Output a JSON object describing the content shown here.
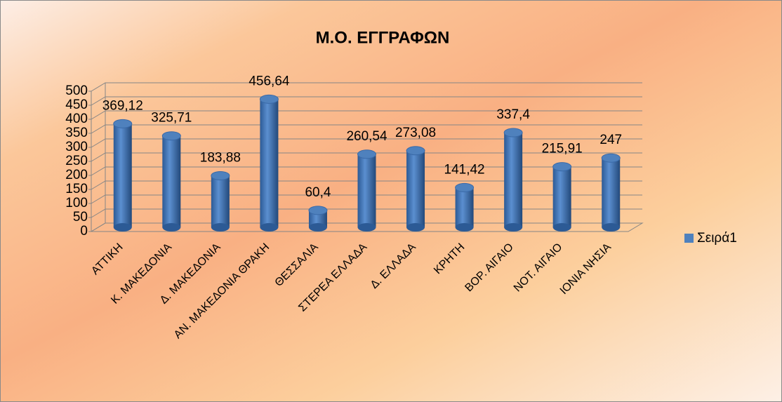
{
  "chart_data": {
    "type": "bar3d",
    "title": "Μ.Ο. ΕΓΓΡΑΦΩΝ",
    "categories": [
      "ΑΤΤΙΚΗ",
      "Κ. ΜΑΚΕΔΟΝΙΑ",
      "Δ. ΜΑΚΕΔΟΝΙΑ",
      "ΑΝ. ΜΑΚΕΔΟΝΙΑ ΘΡΑΚΗ",
      "ΘΕΣΣΑΛΙΑ",
      "ΣΤΕΡΕΑ ΕΛΛΑΔΑ",
      "Δ. ΕΛΛΑΔΑ",
      "ΚΡΗΤΗ",
      "ΒΟΡ. ΑΙΓΑΙΟ",
      "ΝΟΤ. ΑΙΓΑΙΟ",
      "ΙΟΝΙΑ ΝΗΣΙΑ"
    ],
    "series": [
      {
        "name": "Σειρά1",
        "color": "#4f81bd",
        "values": [
          369.12,
          325.71,
          183.88,
          456.64,
          60.4,
          260.54,
          273.08,
          141.42,
          337.4,
          215.91,
          247
        ],
        "value_labels": [
          "369,12",
          "325,71",
          "183,88",
          "456,64",
          "60,4",
          "260,54",
          "273,08",
          "141,42",
          "337,4",
          "215,91",
          "247"
        ]
      }
    ],
    "ylim": [
      0,
      500
    ],
    "yticks": [
      0,
      50,
      100,
      150,
      200,
      250,
      300,
      350,
      400,
      450,
      500
    ],
    "grid": true,
    "legend": "right"
  }
}
